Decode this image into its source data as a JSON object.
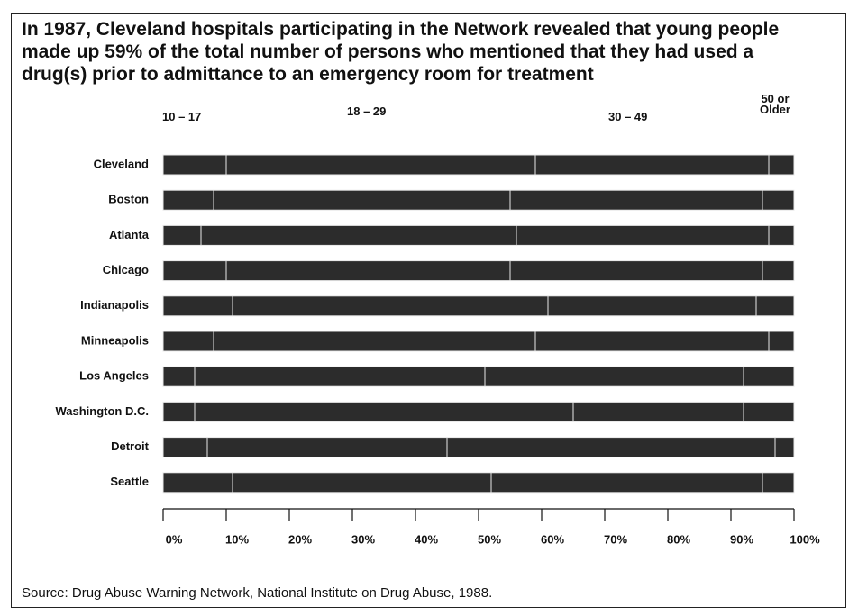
{
  "chart_data": {
    "type": "stacked-bar",
    "title": "In 1987, Cleveland hospitals participating in the Network revealed that young people made up 59% of the total number of persons who mentioned that they had used a drug(s) prior to admittance to an emergency room for treatment",
    "categories": [
      "Cleveland",
      "Boston",
      "Atlanta",
      "Chicago",
      "Indianapolis",
      "Minneapolis",
      "Los Angeles",
      "Washington D.C.",
      "Detroit",
      "Seattle"
    ],
    "series": [
      {
        "name": "10 – 17",
        "color": "#2c2c2c",
        "values": [
          10,
          8,
          6,
          10,
          11,
          8,
          5,
          5,
          7,
          11
        ]
      },
      {
        "name": "18 – 29",
        "color": "#2c2c2c",
        "values": [
          49,
          47,
          50,
          45,
          50,
          51,
          46,
          60,
          38,
          41
        ]
      },
      {
        "name": "30 – 49",
        "color": "#2c2c2c",
        "values": [
          37,
          40,
          40,
          40,
          33,
          37,
          41,
          27,
          52,
          43
        ]
      },
      {
        "name": "50 or Older",
        "color": "#2c2c2c",
        "values": [
          4,
          5,
          4,
          5,
          6,
          4,
          8,
          8,
          3,
          5
        ]
      }
    ],
    "xlim": [
      0,
      100
    ],
    "xticks": [
      {
        "value": 0,
        "label": "0%"
      },
      {
        "value": 10,
        "label": "10%"
      },
      {
        "value": 20,
        "label": "20%"
      },
      {
        "value": 30,
        "label": "30%"
      },
      {
        "value": 40,
        "label": "40%"
      },
      {
        "value": 50,
        "label": "50%"
      },
      {
        "value": 60,
        "label": "60%"
      },
      {
        "value": 70,
        "label": "70%"
      },
      {
        "value": 80,
        "label": "80%"
      },
      {
        "value": 90,
        "label": "90%"
      },
      {
        "value": 100,
        "label": "100%"
      }
    ],
    "source": "Source: Drug Abuse Warning Network, National Institute on Drug Abuse, 1988."
  }
}
